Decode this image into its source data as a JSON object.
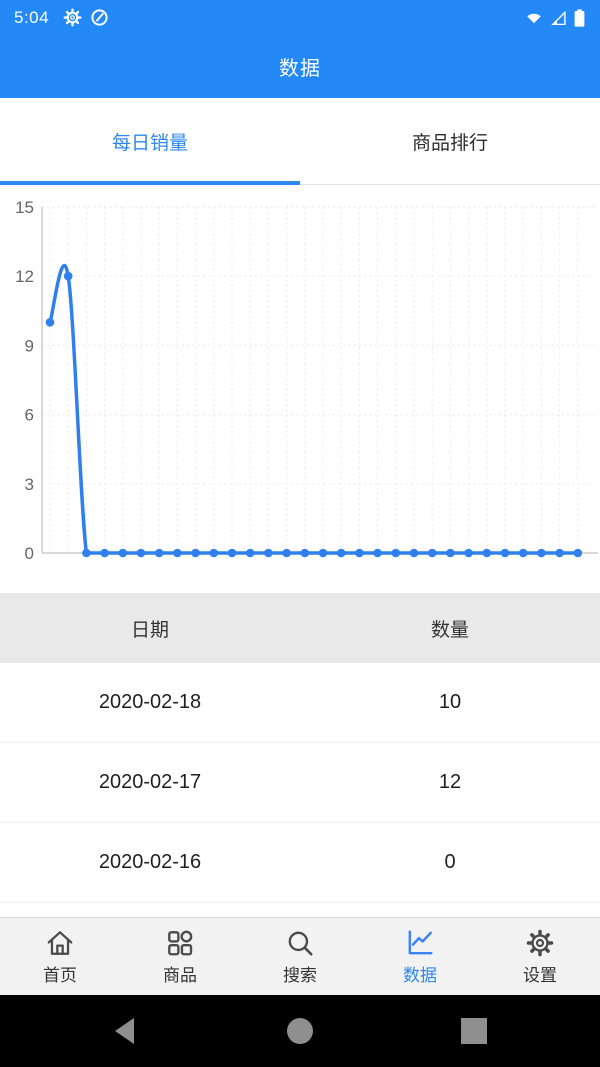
{
  "colors": {
    "primary": "#2389f7",
    "accent_text": "#2e87f2",
    "chart_line": "#2f80ec",
    "grid": "#e8e8e8",
    "axis": "#cccccc",
    "tick_text": "#666666",
    "nav_inactive": "#4a4a4a",
    "android_icon": "#8f8f8f",
    "table_header_bg": "#e9e9e9"
  },
  "status_bar": {
    "time": "5:04"
  },
  "header": {
    "title": "数据"
  },
  "tabs": [
    {
      "label": "每日销量",
      "active": true
    },
    {
      "label": "商品排行",
      "active": false
    }
  ],
  "chart_data": {
    "type": "line",
    "title": "",
    "xlabel": "",
    "ylabel": "",
    "values": [
      10,
      12,
      0,
      0,
      0,
      0,
      0,
      0,
      0,
      0,
      0,
      0,
      0,
      0,
      0,
      0,
      0,
      0,
      0,
      0,
      0,
      0,
      0,
      0,
      0,
      0,
      0,
      0,
      0,
      0
    ],
    "y_ticks": [
      0,
      3,
      6,
      9,
      12,
      15
    ],
    "ylim": [
      0,
      15
    ],
    "x_labels_visible": false,
    "grid": "dotted",
    "smooth": true,
    "legend": "none"
  },
  "sales_table": {
    "columns": [
      "日期",
      "数量"
    ],
    "rows": [
      [
        "2020-02-18",
        "10"
      ],
      [
        "2020-02-17",
        "12"
      ],
      [
        "2020-02-16",
        "0"
      ]
    ]
  },
  "bottom_nav": {
    "items": [
      {
        "label": "首页",
        "icon": "home-icon",
        "active": false
      },
      {
        "label": "商品",
        "icon": "category-icon",
        "active": false
      },
      {
        "label": "搜索",
        "icon": "search-icon",
        "active": false
      },
      {
        "label": "数据",
        "icon": "chart-line-icon",
        "active": true
      },
      {
        "label": "设置",
        "icon": "gear-icon",
        "active": false
      }
    ]
  },
  "android_nav": {
    "buttons": [
      "back",
      "home",
      "recents"
    ]
  }
}
